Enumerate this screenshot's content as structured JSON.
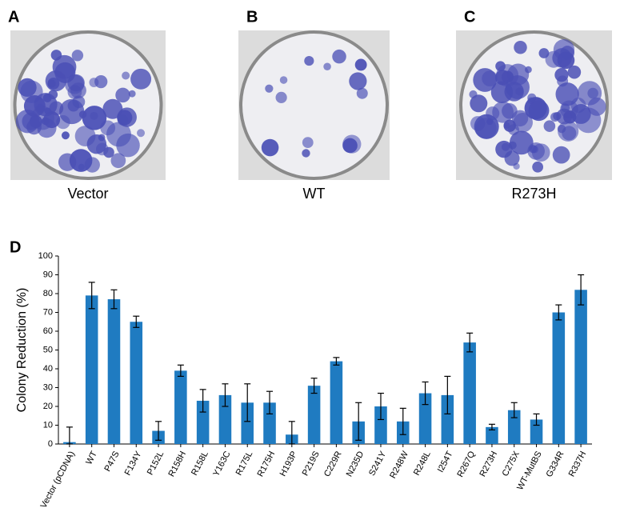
{
  "panels": [
    {
      "letter": "A",
      "caption": "Vector"
    },
    {
      "letter": "B",
      "caption": "WT"
    },
    {
      "letter": "C",
      "caption": "R273H"
    }
  ],
  "chart_data": {
    "type": "bar",
    "panel_label": "D",
    "y_label": "Colony Reduction (%)",
    "categories": [
      "Vector (pCDNA)",
      "WT",
      "P47S",
      "F134Y",
      "P152L",
      "R158H",
      "R158L",
      "Y163C",
      "R175L",
      "R175H",
      "H193P",
      "P219S",
      "C229R",
      "N235D",
      "S241Y",
      "R248W",
      "R248L",
      "I254T",
      "R267Q",
      "R273H",
      "C275X",
      "WT-MutBS",
      "G334R",
      "R337H"
    ],
    "values": [
      1,
      79,
      77,
      65,
      7,
      39,
      23,
      26,
      22,
      22,
      5,
      31,
      44,
      12,
      20,
      12,
      27,
      26,
      54,
      9,
      18,
      13,
      70,
      82
    ],
    "errors": [
      8,
      7,
      5,
      3,
      5,
      3,
      6,
      6,
      10,
      6,
      7,
      4,
      2,
      10,
      7,
      7,
      6,
      10,
      5,
      1.5,
      4,
      3,
      4,
      8
    ],
    "color": "#1f7bc1",
    "ylim": [
      0,
      100
    ],
    "yticks": [
      0,
      10,
      20,
      30,
      40,
      50,
      60,
      70,
      80,
      90,
      100
    ]
  }
}
